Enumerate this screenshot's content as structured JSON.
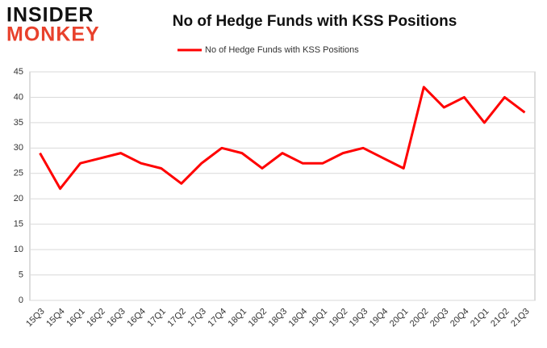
{
  "logo": {
    "top": "INSIDER",
    "bottom": "MONKEY"
  },
  "chart_data": {
    "type": "line",
    "title": "No of Hedge Funds with KSS Positions",
    "categories": [
      "15Q3",
      "15Q4",
      "16Q1",
      "16Q2",
      "16Q3",
      "16Q4",
      "17Q1",
      "17Q2",
      "17Q3",
      "17Q4",
      "18Q1",
      "18Q2",
      "18Q3",
      "18Q4",
      "19Q1",
      "19Q2",
      "19Q3",
      "19Q4",
      "20Q1",
      "20Q2",
      "20Q3",
      "20Q4",
      "21Q1",
      "21Q2",
      "21Q3"
    ],
    "series": [
      {
        "name": "No of Hedge Funds with KSS Positions",
        "color": "#ff0000",
        "values": [
          29,
          22,
          27,
          28,
          29,
          27,
          26,
          23,
          27,
          30,
          29,
          26,
          29,
          27,
          27,
          29,
          30,
          28,
          26,
          42,
          38,
          40,
          35,
          40,
          37
        ]
      }
    ],
    "ylim": [
      0,
      45
    ],
    "yticks": [
      0,
      5,
      10,
      15,
      20,
      25,
      30,
      35,
      40,
      45
    ],
    "grid": true,
    "legend": "top"
  }
}
